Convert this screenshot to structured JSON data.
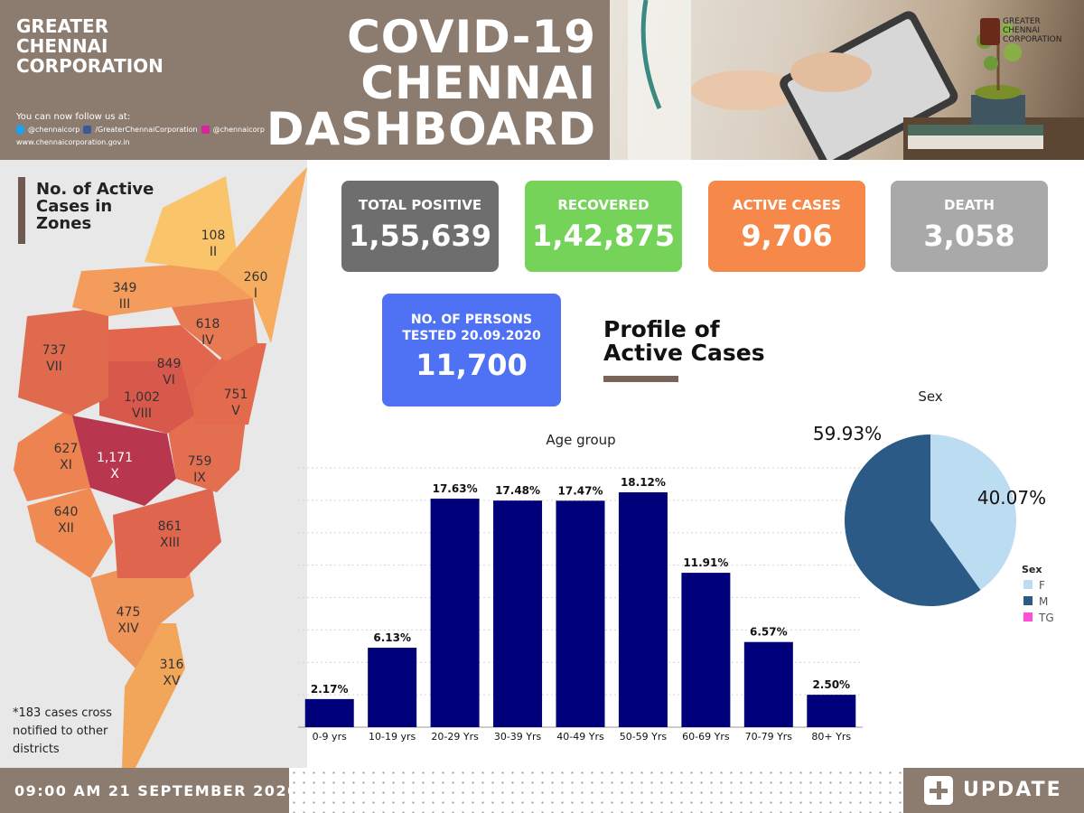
{
  "header": {
    "org_name": "GREATER\nCHENNAI\nCORPORATION",
    "follow_label": "You can now follow us at:",
    "twitter": "@chennaicorp",
    "facebook": "/GreaterChennaiCorporation",
    "instagram": "@chennaicorp",
    "website": "www.chennaicorporation.gov.in",
    "title": "COVID-19\nCHENNAI\nDASHBOARD",
    "logo_text": "GREATER\nCHENNAI\nCORPORATION"
  },
  "map": {
    "title": "No. of Active\nCases in\nZones",
    "note": "*183 cases cross\nnotified to other\ndistricts",
    "zones": [
      {
        "roman": "I",
        "value": "260"
      },
      {
        "roman": "II",
        "value": "108"
      },
      {
        "roman": "III",
        "value": "349"
      },
      {
        "roman": "IV",
        "value": "618"
      },
      {
        "roman": "V",
        "value": "751"
      },
      {
        "roman": "VI",
        "value": "849"
      },
      {
        "roman": "VII",
        "value": "737"
      },
      {
        "roman": "VIII",
        "value": "1,002"
      },
      {
        "roman": "IX",
        "value": "759"
      },
      {
        "roman": "X",
        "value": "1,171"
      },
      {
        "roman": "XI",
        "value": "627"
      },
      {
        "roman": "XII",
        "value": "640"
      },
      {
        "roman": "XIII",
        "value": "861"
      },
      {
        "roman": "XIV",
        "value": "475"
      },
      {
        "roman": "XV",
        "value": "316"
      }
    ]
  },
  "cards": {
    "total_positive": {
      "label": "TOTAL POSITIVE",
      "value": "1,55,639",
      "color": "#6e6e6e"
    },
    "recovered": {
      "label": "RECOVERED",
      "value": "1,42,875",
      "color": "#75d35a"
    },
    "active": {
      "label": "ACTIVE CASES",
      "value": "9,706",
      "color": "#f6894a"
    },
    "death": {
      "label": "DEATH",
      "value": "3,058",
      "color": "#a9a9a9"
    },
    "tested": {
      "label": "NO. OF PERSONS\nTESTED 20.09.2020",
      "value": "11,700",
      "color": "#4f72f5"
    }
  },
  "profile": {
    "title": "Profile of\nActive Cases"
  },
  "chart_data": [
    {
      "type": "bar",
      "title": "Age group",
      "categories": [
        "0-9 yrs",
        "10-19 yrs",
        "20-29 Yrs",
        "30-39 Yrs",
        "40-49 Yrs",
        "50-59 Yrs",
        "60-69 Yrs",
        "70-79 Yrs",
        "80+ Yrs"
      ],
      "values": [
        2.17,
        6.13,
        17.63,
        17.48,
        17.47,
        18.12,
        11.91,
        6.57,
        2.5
      ],
      "value_labels": [
        "2.17%",
        "6.13%",
        "17.63%",
        "17.48%",
        "17.47%",
        "18.12%",
        "11.91%",
        "6.57%",
        "2.50%"
      ],
      "ylim": [
        0,
        20
      ],
      "color": "#00007a"
    },
    {
      "type": "pie",
      "title": "Sex",
      "legend_title": "Sex",
      "legend_position": "bottom-right",
      "labels": [
        "F",
        "M",
        "TG"
      ],
      "values": [
        40.07,
        59.93,
        0
      ],
      "value_labels": [
        "40.07%",
        "59.93%",
        ""
      ],
      "colors": [
        "#bcdcf2",
        "#2b5a86",
        "#ff4fd6"
      ]
    }
  ],
  "footer": {
    "timestamp": "09:00 AM 21 SEPTEMBER 2020",
    "update_label": "UPDATE"
  }
}
